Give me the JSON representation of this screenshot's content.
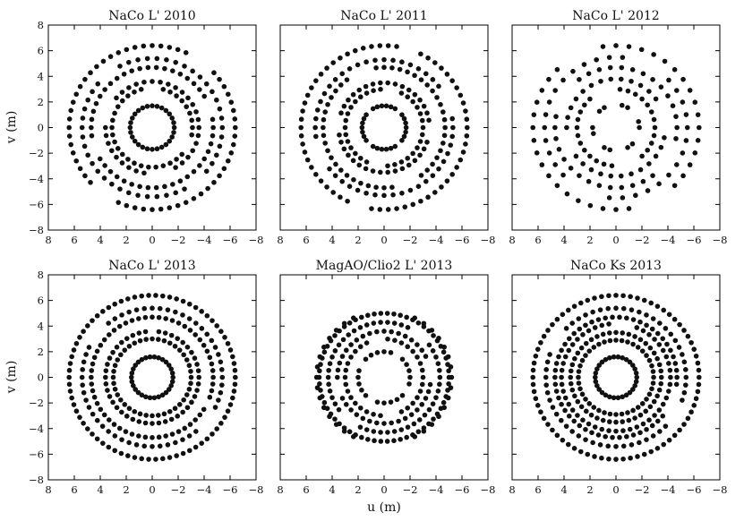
{
  "figure": {
    "xlabel": "u (m)",
    "ylabel": "v (m)"
  },
  "chart_data": [
    {
      "type": "scatter",
      "title": "NaCo L' 2010",
      "xlabel": "",
      "ylabel": "v (m)",
      "xlim": [
        8,
        -8
      ],
      "ylim": [
        -8,
        8
      ],
      "xticks": [
        "8",
        "6",
        "4",
        "2",
        "0",
        "−2",
        "−4",
        "−6",
        "−8"
      ],
      "yticks": [
        "8",
        "6",
        "4",
        "2",
        "0",
        "−2",
        "−4",
        "−6",
        "−8"
      ],
      "grid": false,
      "rings": [
        {
          "radius": 1.7,
          "count": 28,
          "gaps": []
        },
        {
          "radius": 3.1,
          "count": 34,
          "gaps": [
            [
              80,
              100
            ],
            [
              200,
              215
            ]
          ]
        },
        {
          "radius": 3.6,
          "count": 36,
          "gaps": [
            [
              10,
              30
            ],
            [
              250,
              270
            ]
          ]
        },
        {
          "radius": 4.7,
          "count": 46,
          "gaps": [
            [
              150,
              165
            ],
            [
              330,
              345
            ]
          ]
        },
        {
          "radius": 5.4,
          "count": 46,
          "gaps": [
            [
              40,
              60
            ],
            [
              220,
              240
            ]
          ]
        },
        {
          "radius": 6.4,
          "count": 60,
          "gaps": [
            [
              120,
              135
            ],
            [
              300,
              315
            ]
          ]
        }
      ]
    },
    {
      "type": "scatter",
      "title": "NaCo L' 2011",
      "xlim": [
        8,
        -8
      ],
      "ylim": [
        -8,
        8
      ],
      "xticks": [
        "8",
        "6",
        "4",
        "2",
        "0",
        "−2",
        "−4",
        "−6",
        "−8"
      ],
      "grid": false,
      "rings": [
        {
          "radius": 1.7,
          "count": 30,
          "gaps": [
            [
              40,
              50
            ],
            [
              130,
              140
            ],
            [
              220,
              230
            ],
            [
              310,
              320
            ]
          ]
        },
        {
          "radius": 3.0,
          "count": 34,
          "gaps": [
            [
              90,
              110
            ],
            [
              270,
              290
            ]
          ]
        },
        {
          "radius": 3.5,
          "count": 38,
          "gaps": [
            [
              0,
              15
            ],
            [
              180,
              195
            ]
          ]
        },
        {
          "radius": 4.7,
          "count": 48,
          "gaps": [
            [
              60,
              75
            ],
            [
              240,
              255
            ]
          ]
        },
        {
          "radius": 5.3,
          "count": 48,
          "gaps": [
            [
              150,
              170
            ],
            [
              330,
              350
            ]
          ]
        },
        {
          "radius": 6.4,
          "count": 62,
          "gaps": [
            [
              100,
              112
            ],
            [
              280,
              292
            ]
          ]
        }
      ]
    },
    {
      "type": "scatter",
      "title": "NaCo L' 2012",
      "xlim": [
        8,
        -8
      ],
      "ylim": [
        -8,
        8
      ],
      "xticks": [
        "8",
        "6",
        "4",
        "2",
        "0",
        "−2",
        "−4",
        "−6",
        "−8"
      ],
      "grid": false,
      "rings": [
        {
          "radius": 1.8,
          "count": 24,
          "gaps": [
            [
              15,
              40
            ],
            [
              75,
              100
            ],
            [
              135,
              160
            ],
            [
              195,
              220
            ],
            [
              255,
              280
            ],
            [
              315,
              340
            ]
          ]
        },
        {
          "radius": 3.0,
          "count": 30,
          "gaps": [
            [
              60,
              85
            ],
            [
              240,
              265
            ]
          ]
        },
        {
          "radius": 3.8,
          "count": 30,
          "gaps": [
            [
              150,
              180
            ],
            [
              330,
              359
            ]
          ]
        },
        {
          "radius": 4.7,
          "count": 34,
          "gaps": [
            [
              20,
              45
            ],
            [
              200,
              225
            ]
          ]
        },
        {
          "radius": 5.5,
          "count": 34,
          "gaps": [
            [
              100,
              130
            ],
            [
              280,
              310
            ]
          ]
        },
        {
          "radius": 6.4,
          "count": 40,
          "gaps": [
            [
              50,
              80
            ],
            [
              230,
              260
            ]
          ]
        }
      ]
    },
    {
      "type": "scatter",
      "title": "NaCo L' 2013",
      "xlabel": "",
      "ylabel": "v (m)",
      "xlim": [
        8,
        -8
      ],
      "ylim": [
        -8,
        8
      ],
      "xticks": [
        "8",
        "6",
        "4",
        "2",
        "0",
        "−2",
        "−4",
        "−6",
        "−8"
      ],
      "yticks": [
        "8",
        "6",
        "4",
        "2",
        "0",
        "−2",
        "−4",
        "−6",
        "−8"
      ],
      "grid": false,
      "rings": [
        {
          "radius": 1.6,
          "count": 30,
          "gaps": []
        },
        {
          "radius": 3.0,
          "count": 40,
          "gaps": []
        },
        {
          "radius": 3.6,
          "count": 44,
          "gaps": [
            [
              85,
              95
            ]
          ]
        },
        {
          "radius": 4.7,
          "count": 56,
          "gaps": [
            [
              200,
              212
            ]
          ]
        },
        {
          "radius": 5.4,
          "count": 56,
          "gaps": [
            [
              30,
              45
            ],
            [
              210,
              225
            ]
          ]
        },
        {
          "radius": 6.4,
          "count": 74,
          "gaps": []
        }
      ]
    },
    {
      "type": "scatter",
      "title": "MagAO/Clio2 L' 2013",
      "xlabel": "u (m)",
      "xlim": [
        8,
        -8
      ],
      "ylim": [
        -8,
        8
      ],
      "xticks": [
        "8",
        "6",
        "4",
        "2",
        "0",
        "−2",
        "−4",
        "−6",
        "−8"
      ],
      "grid": false,
      "rings": [
        {
          "radius": 2.0,
          "count": 24,
          "gaps": [
            [
              20,
              40
            ],
            [
              110,
              130
            ],
            [
              200,
              220
            ],
            [
              290,
              310
            ]
          ]
        },
        {
          "radius": 3.0,
          "count": 34,
          "gaps": [
            [
              70,
              95
            ],
            [
              250,
              275
            ]
          ]
        },
        {
          "radius": 3.6,
          "count": 40,
          "gaps": [
            [
              160,
              180
            ],
            [
              340,
              359
            ]
          ]
        },
        {
          "radius": 4.3,
          "count": 50,
          "gaps": [
            [
              120,
              140
            ],
            [
              300,
              320
            ]
          ]
        },
        {
          "radius": 5.0,
          "count": 62,
          "gaps": []
        },
        {
          "radius": 5.2,
          "count": 40,
          "gaps": [
            [
              70,
              110
            ],
            [
              250,
              290
            ]
          ]
        }
      ]
    },
    {
      "type": "scatter",
      "title": "NaCo Ks 2013",
      "xlim": [
        8,
        -8
      ],
      "ylim": [
        -8,
        8
      ],
      "xticks": [
        "8",
        "6",
        "4",
        "2",
        "0",
        "−2",
        "−4",
        "−6",
        "−8"
      ],
      "grid": false,
      "rings": [
        {
          "radius": 1.6,
          "count": 30,
          "gaps": []
        },
        {
          "radius": 2.9,
          "count": 40,
          "gaps": []
        },
        {
          "radius": 3.5,
          "count": 44,
          "gaps": []
        },
        {
          "radius": 4.2,
          "count": 48,
          "gaps": [
            [
              90,
              110
            ]
          ]
        },
        {
          "radius": 4.7,
          "count": 54,
          "gaps": [
            [
              190,
              215
            ]
          ]
        },
        {
          "radius": 5.4,
          "count": 56,
          "gaps": [
            [
              20,
              40
            ],
            [
              200,
              220
            ]
          ]
        },
        {
          "radius": 6.4,
          "count": 72,
          "gaps": []
        }
      ]
    }
  ]
}
